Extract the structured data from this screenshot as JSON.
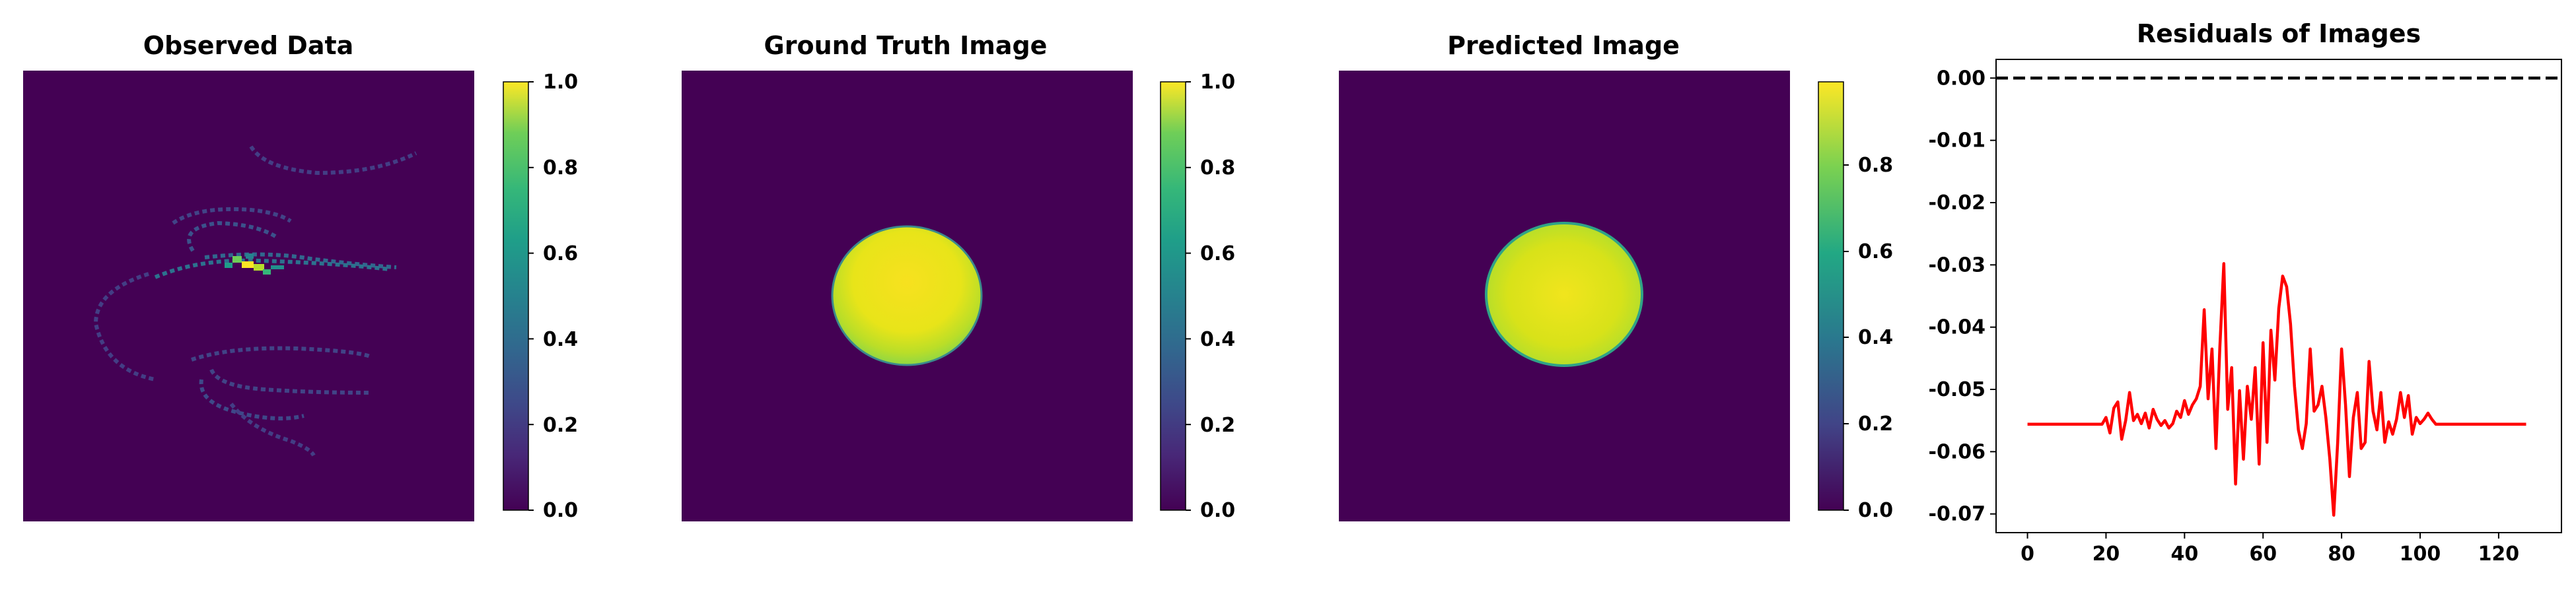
{
  "panels": [
    {
      "title": "Observed Data",
      "colorbar_ticks": [
        "1.0",
        "0.8",
        "0.6",
        "0.4",
        "0.2",
        "0.0"
      ]
    },
    {
      "title": "Ground Truth Image",
      "colorbar_ticks": [
        "1.0",
        "0.8",
        "0.6",
        "0.4",
        "0.2",
        "0.0"
      ]
    },
    {
      "title": "Predicted Image",
      "colorbar_ticks": [
        "0.8",
        "0.6",
        "0.4",
        "0.2",
        "0.0"
      ]
    }
  ],
  "colors": {
    "viridis_low": "#440154",
    "viridis_high": "#fde725",
    "residual_line": "#ff0000",
    "reference_line": "#000000"
  },
  "chart_data": [
    {
      "type": "heatmap",
      "title": "Observed Data",
      "colorbar_range": [
        0.0,
        1.0
      ],
      "description_values": "sparse spiral sampling trajectory with bright spot near center"
    },
    {
      "type": "heatmap",
      "title": "Ground Truth Image",
      "colorbar_range": [
        0.0,
        1.0
      ]
    },
    {
      "type": "heatmap",
      "title": "Predicted Image",
      "colorbar_range": [
        0.0,
        0.98
      ]
    },
    {
      "type": "line",
      "title": "Residuals of Images",
      "xlabel": "",
      "ylabel": "",
      "xlim": [
        -8,
        136
      ],
      "ylim": [
        -0.073,
        0.003
      ],
      "x_ticks": [
        0,
        20,
        40,
        60,
        80,
        100,
        120
      ],
      "y_ticks": [
        "0.00",
        "-0.01",
        "-0.02",
        "-0.03",
        "-0.04",
        "-0.05",
        "-0.06",
        "-0.07"
      ],
      "reference_line": {
        "y": 0.0,
        "style": "dashed"
      },
      "series": [
        {
          "x": [
            0,
            1,
            2,
            3,
            4,
            5,
            6,
            7,
            8,
            9,
            10,
            11,
            12,
            13,
            14,
            15,
            16,
            17,
            18,
            19,
            20,
            21,
            22,
            23,
            24,
            25,
            26,
            27,
            28,
            29,
            30,
            31,
            32,
            33,
            34,
            35,
            36,
            37,
            38,
            39,
            40,
            41,
            42,
            43,
            44,
            45,
            46,
            47,
            48,
            49,
            50,
            51,
            52,
            53,
            54,
            55,
            56,
            57,
            58,
            59,
            60,
            61,
            62,
            63,
            64,
            65,
            66,
            67,
            68,
            69,
            70,
            71,
            72,
            73,
            74,
            75,
            76,
            77,
            78,
            79,
            80,
            81,
            82,
            83,
            84,
            85,
            86,
            87,
            88,
            89,
            90,
            91,
            92,
            93,
            94,
            95,
            96,
            97,
            98,
            99,
            100,
            101,
            102,
            103,
            104,
            105,
            106,
            107,
            108,
            109,
            110,
            111,
            112,
            113,
            114,
            115,
            116,
            117,
            118,
            119,
            120,
            121,
            122,
            123,
            124,
            125,
            126,
            127
          ],
          "values": [
            -0.0556,
            -0.0556,
            -0.0556,
            -0.0556,
            -0.0556,
            -0.0556,
            -0.0556,
            -0.0556,
            -0.0556,
            -0.0556,
            -0.0556,
            -0.0556,
            -0.0556,
            -0.0556,
            -0.0556,
            -0.0556,
            -0.0556,
            -0.0556,
            -0.0556,
            -0.0556,
            -0.0545,
            -0.057,
            -0.053,
            -0.052,
            -0.058,
            -0.055,
            -0.0505,
            -0.055,
            -0.054,
            -0.0555,
            -0.0538,
            -0.0562,
            -0.0532,
            -0.0548,
            -0.0558,
            -0.055,
            -0.0562,
            -0.0555,
            -0.0535,
            -0.0545,
            -0.0518,
            -0.054,
            -0.0525,
            -0.0515,
            -0.0495,
            -0.0372,
            -0.0515,
            -0.0435,
            -0.0595,
            -0.0432,
            -0.0298,
            -0.0532,
            -0.0465,
            -0.0652,
            -0.0502,
            -0.0612,
            -0.0495,
            -0.0548,
            -0.0465,
            -0.062,
            -0.0425,
            -0.0585,
            -0.0405,
            -0.0485,
            -0.037,
            -0.0318,
            -0.0335,
            -0.0395,
            -0.0495,
            -0.0565,
            -0.0595,
            -0.0555,
            -0.0435,
            -0.0535,
            -0.0525,
            -0.0495,
            -0.0545,
            -0.0612,
            -0.0702,
            -0.0585,
            -0.0435,
            -0.0525,
            -0.064,
            -0.0545,
            -0.0505,
            -0.0595,
            -0.0585,
            -0.0455,
            -0.0535,
            -0.0565,
            -0.0505,
            -0.0585,
            -0.0552,
            -0.0572,
            -0.0548,
            -0.0505,
            -0.0545,
            -0.051,
            -0.0572,
            -0.0545,
            -0.0555,
            -0.0548,
            -0.0538,
            -0.0548,
            -0.0556,
            -0.0556,
            -0.0556,
            -0.0556,
            -0.0556,
            -0.0556,
            -0.0556,
            -0.0556,
            -0.0556,
            -0.0556,
            -0.0556,
            -0.0556,
            -0.0556,
            -0.0556,
            -0.0556,
            -0.0556,
            -0.0556,
            -0.0556,
            -0.0556,
            -0.0556,
            -0.0556,
            -0.0556,
            -0.0556,
            -0.0556
          ]
        }
      ]
    }
  ]
}
